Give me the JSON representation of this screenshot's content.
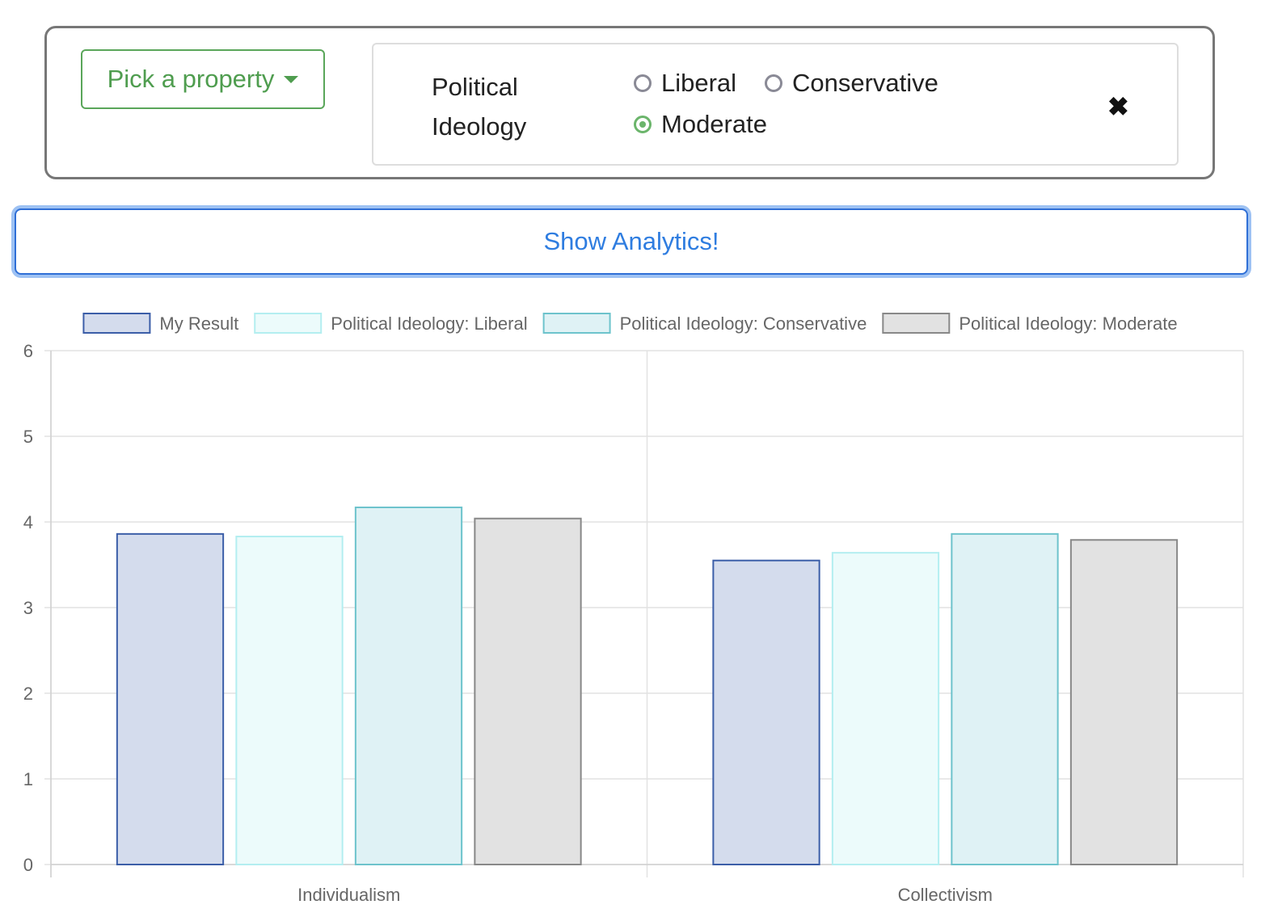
{
  "filter": {
    "pick_label": "Pick a property",
    "property_name": "Political Ideology",
    "options": [
      {
        "label": "Liberal",
        "checked": false
      },
      {
        "label": "Conservative",
        "checked": false
      },
      {
        "label": "Moderate",
        "checked": true
      }
    ],
    "close_icon": "close-icon"
  },
  "analytics_button": "Show Analytics!",
  "colors": {
    "accent_green": "#4f9d4f",
    "accent_blue": "#2f7de0"
  },
  "chart_data": {
    "type": "bar",
    "categories": [
      "Individualism",
      "Collectivism"
    ],
    "series": [
      {
        "name": "My Result",
        "values": [
          3.86,
          3.55
        ],
        "fill": "#d4dced",
        "stroke": "#3b5ea8"
      },
      {
        "name": "Political Ideology: Liberal",
        "values": [
          3.83,
          3.64
        ],
        "fill": "#ecfbfb",
        "stroke": "#b3eef0"
      },
      {
        "name": "Political Ideology: Conservative",
        "values": [
          4.17,
          3.86
        ],
        "fill": "#dff2f5",
        "stroke": "#6dc3cc"
      },
      {
        "name": "Political Ideology: Moderate",
        "values": [
          4.04,
          3.79
        ],
        "fill": "#e2e2e2",
        "stroke": "#888888"
      }
    ],
    "ylim": [
      0,
      6
    ],
    "yticks": [
      0,
      1,
      2,
      3,
      4,
      5,
      6
    ],
    "grid": true,
    "legend_position": "top"
  }
}
